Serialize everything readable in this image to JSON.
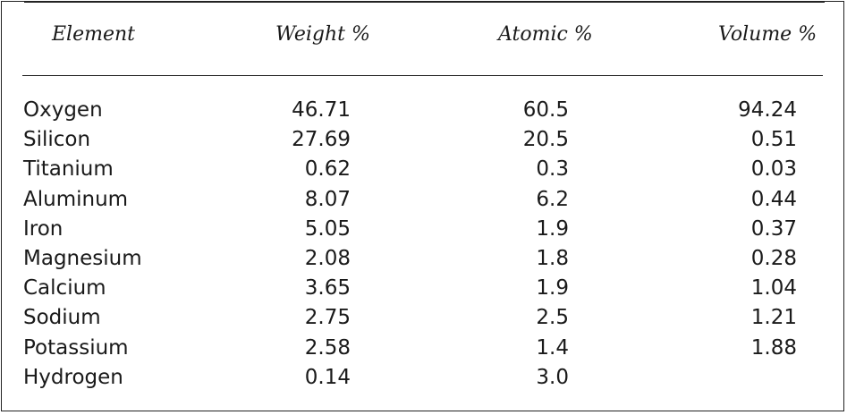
{
  "table": {
    "columns": [
      "Element",
      "Weight %",
      "Atomic %",
      "Volume %"
    ],
    "rows": [
      {
        "element": "Oxygen",
        "weight": "46.71",
        "atomic": "60.5",
        "volume": "94.24"
      },
      {
        "element": "Silicon",
        "weight": "27.69",
        "atomic": "20.5",
        "volume": "0.51"
      },
      {
        "element": "Titanium",
        "weight": "0.62",
        "atomic": "0.3",
        "volume": "0.03"
      },
      {
        "element": "Aluminum",
        "weight": "8.07",
        "atomic": "6.2",
        "volume": "0.44"
      },
      {
        "element": "Iron",
        "weight": "5.05",
        "atomic": "1.9",
        "volume": "0.37"
      },
      {
        "element": "Magnesium",
        "weight": "2.08",
        "atomic": "1.8",
        "volume": "0.28"
      },
      {
        "element": "Calcium",
        "weight": "3.65",
        "atomic": "1.9",
        "volume": "1.04"
      },
      {
        "element": "Sodium",
        "weight": "2.75",
        "atomic": "2.5",
        "volume": "1.21"
      },
      {
        "element": "Potassium",
        "weight": "2.58",
        "atomic": "1.4",
        "volume": "1.88"
      },
      {
        "element": "Hydrogen",
        "weight": "0.14",
        "atomic": "3.0",
        "volume": ""
      }
    ]
  }
}
